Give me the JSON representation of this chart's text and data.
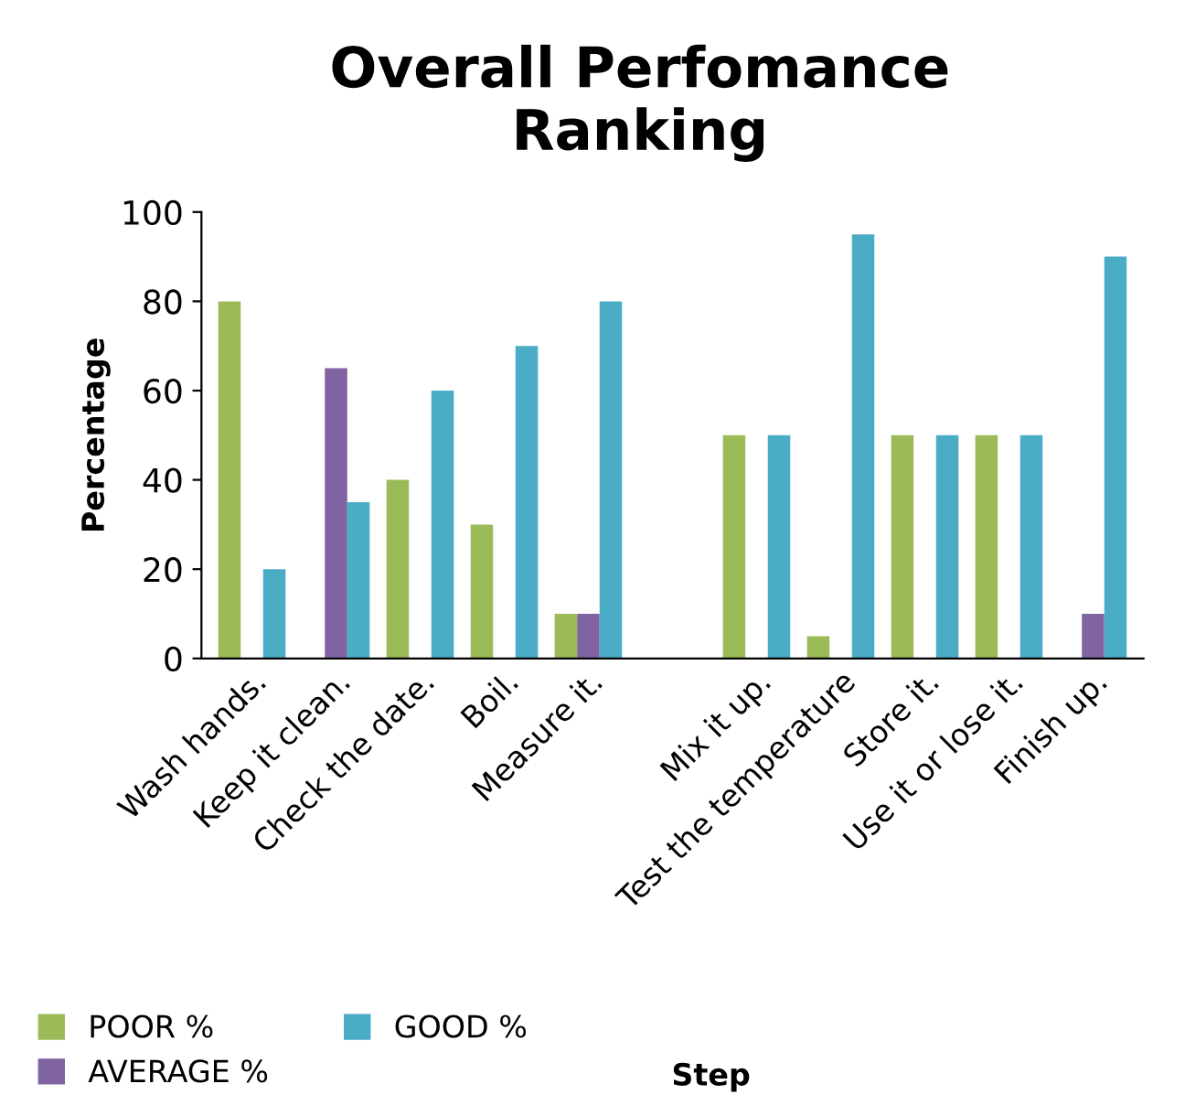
{
  "chart_data": {
    "type": "bar",
    "title": "Overall Perfomance Ranking",
    "xlabel": "Step",
    "ylabel": "Percentage",
    "categories": [
      "Wash hands.",
      "Keep it clean.",
      "Check the date.",
      "Boil.",
      "Measure it.",
      null,
      "Mix it up.",
      "Test the temperature",
      "Store it.",
      "Use it or lose it.",
      "Finish up."
    ],
    "series": [
      {
        "name": "POOR %",
        "color": "#9bbb59",
        "values": [
          80,
          null,
          40,
          30,
          10,
          null,
          50,
          5,
          50,
          50,
          null
        ]
      },
      {
        "name": "AVERAGE %",
        "color": "#8064a2",
        "values": [
          null,
          65,
          null,
          null,
          10,
          null,
          null,
          null,
          null,
          null,
          10
        ]
      },
      {
        "name": "GOOD %",
        "color": "#4bacc6",
        "values": [
          20,
          35,
          60,
          70,
          80,
          null,
          50,
          95,
          50,
          50,
          90
        ]
      }
    ],
    "ylim": [
      0,
      100
    ],
    "yticks": [
      0,
      20,
      40,
      60,
      80,
      100
    ],
    "grid": false,
    "legend": "bottom"
  }
}
